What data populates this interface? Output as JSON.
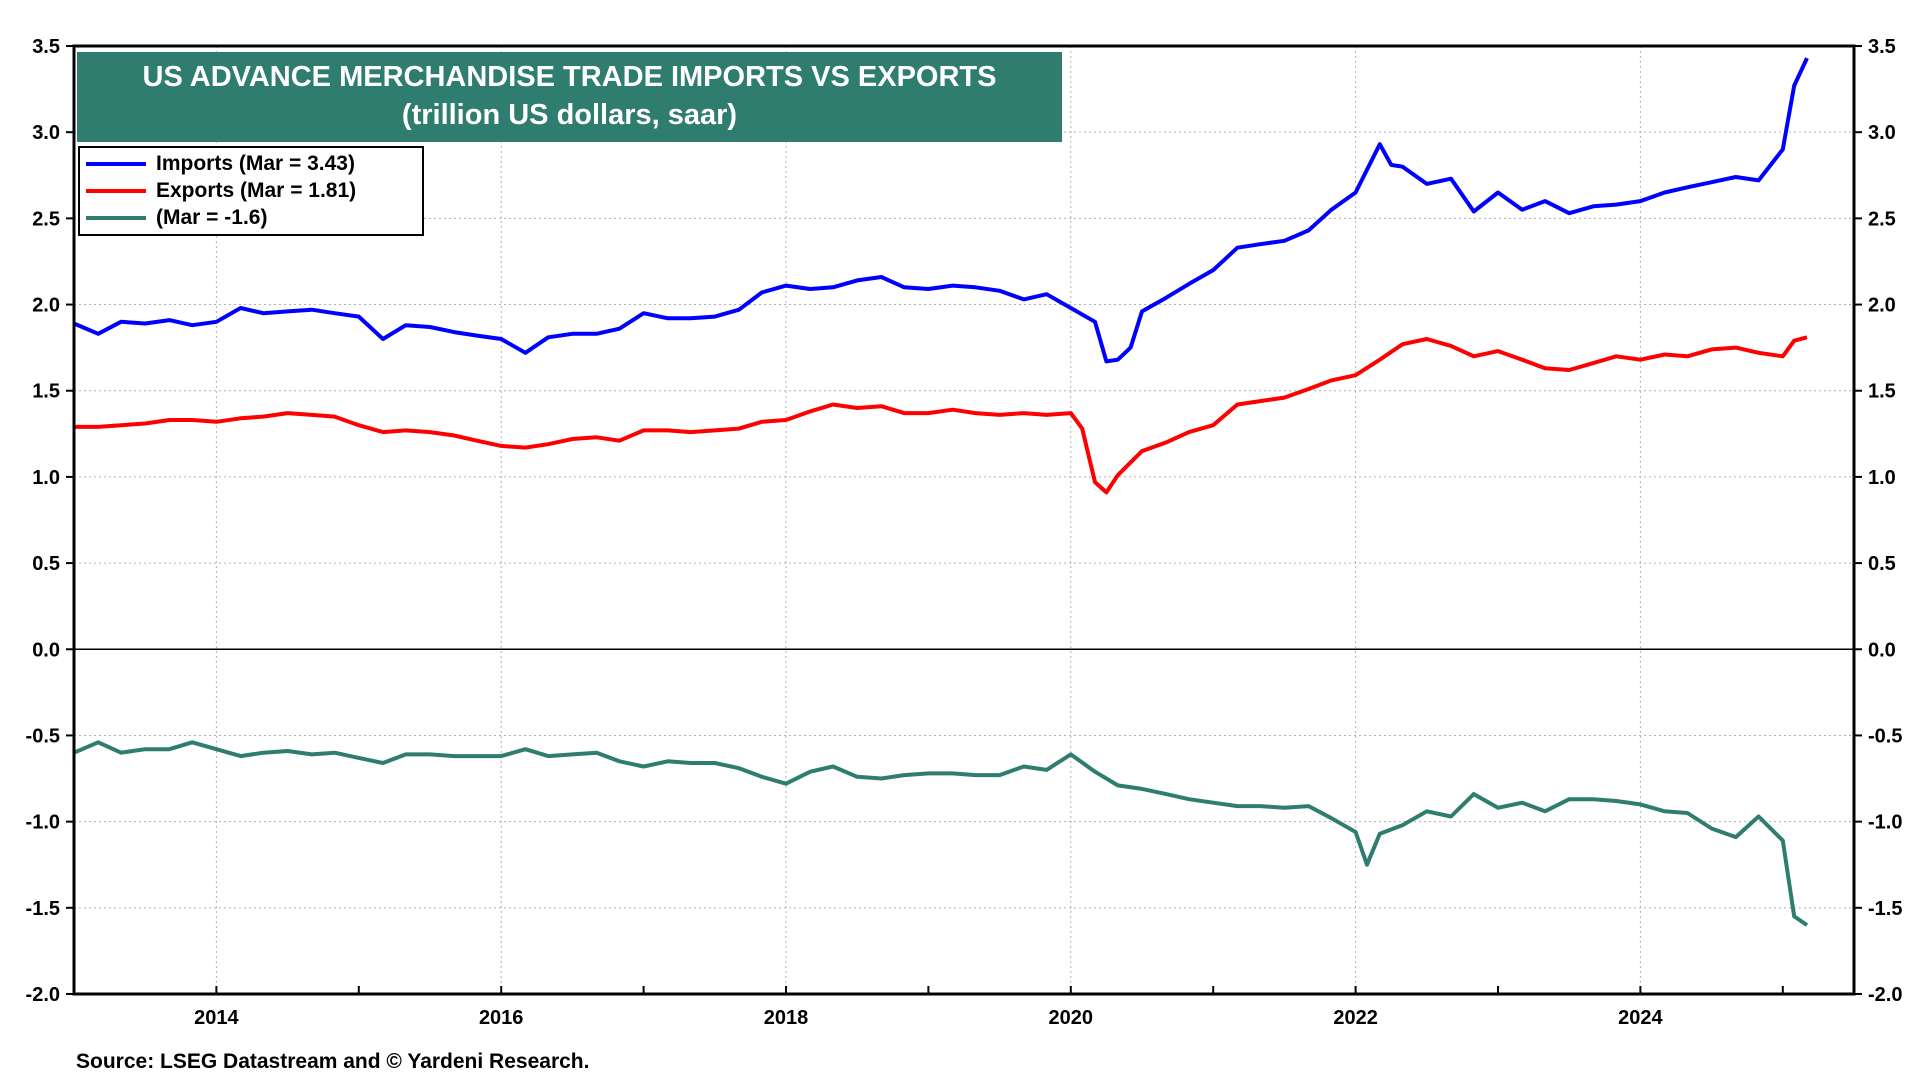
{
  "chart_data": {
    "type": "line",
    "title": "US ADVANCE MERCHANDISE TRADE IMPORTS VS EXPORTS",
    "subtitle": "(trillion US dollars, saar)",
    "ylim": [
      -2.0,
      3.5
    ],
    "y_ticks": [
      "3.5",
      "3.0",
      "2.5",
      "2.0",
      "1.5",
      "1.0",
      "0.5",
      "0.0",
      "-0.5",
      "-1.0",
      "-1.5",
      "-2.0"
    ],
    "x_ticks": [
      "2014",
      "2016",
      "2018",
      "2020",
      "2022",
      "2024"
    ],
    "x_range": [
      2013.0,
      2025.5
    ],
    "grid": true,
    "legend_position": "top-left",
    "series": [
      {
        "name": "Imports (Mar = 3.43)",
        "color": "#0000ff",
        "x": [
          2013.0,
          2013.17,
          2013.33,
          2013.5,
          2013.67,
          2013.83,
          2014.0,
          2014.17,
          2014.33,
          2014.5,
          2014.67,
          2014.83,
          2015.0,
          2015.17,
          2015.33,
          2015.5,
          2015.67,
          2015.83,
          2016.0,
          2016.17,
          2016.33,
          2016.5,
          2016.67,
          2016.83,
          2017.0,
          2017.17,
          2017.33,
          2017.5,
          2017.67,
          2017.83,
          2018.0,
          2018.17,
          2018.33,
          2018.5,
          2018.67,
          2018.83,
          2019.0,
          2019.17,
          2019.33,
          2019.5,
          2019.67,
          2019.83,
          2020.0,
          2020.17,
          2020.25,
          2020.33,
          2020.42,
          2020.5,
          2020.67,
          2020.83,
          2021.0,
          2021.17,
          2021.33,
          2021.5,
          2021.67,
          2021.83,
          2022.0,
          2022.17,
          2022.25,
          2022.33,
          2022.5,
          2022.67,
          2022.83,
          2023.0,
          2023.17,
          2023.33,
          2023.5,
          2023.67,
          2023.83,
          2024.0,
          2024.17,
          2024.33,
          2024.5,
          2024.67,
          2024.83,
          2025.0,
          2025.08,
          2025.17
        ],
        "values": [
          1.89,
          1.83,
          1.9,
          1.89,
          1.91,
          1.88,
          1.9,
          1.98,
          1.95,
          1.96,
          1.97,
          1.95,
          1.93,
          1.8,
          1.88,
          1.87,
          1.84,
          1.82,
          1.8,
          1.72,
          1.81,
          1.83,
          1.83,
          1.86,
          1.95,
          1.92,
          1.92,
          1.93,
          1.97,
          2.07,
          2.11,
          2.09,
          2.1,
          2.14,
          2.16,
          2.1,
          2.09,
          2.11,
          2.1,
          2.08,
          2.03,
          2.06,
          1.98,
          1.9,
          1.67,
          1.68,
          1.75,
          1.96,
          2.04,
          2.12,
          2.2,
          2.33,
          2.35,
          2.37,
          2.43,
          2.55,
          2.65,
          2.93,
          2.81,
          2.8,
          2.7,
          2.73,
          2.54,
          2.65,
          2.55,
          2.6,
          2.53,
          2.57,
          2.58,
          2.6,
          2.65,
          2.68,
          2.71,
          2.74,
          2.72,
          2.9,
          3.27,
          3.43
        ]
      },
      {
        "name": "Exports (Mar = 1.81)",
        "color": "#ff0000",
        "x": [
          2013.0,
          2013.17,
          2013.33,
          2013.5,
          2013.67,
          2013.83,
          2014.0,
          2014.17,
          2014.33,
          2014.5,
          2014.67,
          2014.83,
          2015.0,
          2015.17,
          2015.33,
          2015.5,
          2015.67,
          2015.83,
          2016.0,
          2016.17,
          2016.33,
          2016.5,
          2016.67,
          2016.83,
          2017.0,
          2017.17,
          2017.33,
          2017.5,
          2017.67,
          2017.83,
          2018.0,
          2018.17,
          2018.33,
          2018.5,
          2018.67,
          2018.83,
          2019.0,
          2019.17,
          2019.33,
          2019.5,
          2019.67,
          2019.83,
          2020.0,
          2020.08,
          2020.17,
          2020.25,
          2020.33,
          2020.5,
          2020.67,
          2020.83,
          2021.0,
          2021.17,
          2021.33,
          2021.5,
          2021.67,
          2021.83,
          2022.0,
          2022.17,
          2022.33,
          2022.5,
          2022.67,
          2022.83,
          2023.0,
          2023.17,
          2023.33,
          2023.5,
          2023.67,
          2023.83,
          2024.0,
          2024.17,
          2024.33,
          2024.5,
          2024.67,
          2024.83,
          2025.0,
          2025.08,
          2025.17
        ],
        "values": [
          1.29,
          1.29,
          1.3,
          1.31,
          1.33,
          1.33,
          1.32,
          1.34,
          1.35,
          1.37,
          1.36,
          1.35,
          1.3,
          1.26,
          1.27,
          1.26,
          1.24,
          1.21,
          1.18,
          1.17,
          1.19,
          1.22,
          1.23,
          1.21,
          1.27,
          1.27,
          1.26,
          1.27,
          1.28,
          1.32,
          1.33,
          1.38,
          1.42,
          1.4,
          1.41,
          1.37,
          1.37,
          1.39,
          1.37,
          1.36,
          1.37,
          1.36,
          1.37,
          1.28,
          0.97,
          0.91,
          1.01,
          1.15,
          1.2,
          1.26,
          1.3,
          1.42,
          1.44,
          1.46,
          1.51,
          1.56,
          1.59,
          1.68,
          1.77,
          1.8,
          1.76,
          1.7,
          1.73,
          1.68,
          1.63,
          1.62,
          1.66,
          1.7,
          1.68,
          1.71,
          1.7,
          1.74,
          1.75,
          1.72,
          1.7,
          1.79,
          1.81
        ]
      },
      {
        "name": "(Mar = -1.6)",
        "color": "#2e7d6e",
        "x": [
          2013.0,
          2013.17,
          2013.33,
          2013.5,
          2013.67,
          2013.83,
          2014.0,
          2014.17,
          2014.33,
          2014.5,
          2014.67,
          2014.83,
          2015.0,
          2015.17,
          2015.33,
          2015.5,
          2015.67,
          2015.83,
          2016.0,
          2016.17,
          2016.33,
          2016.5,
          2016.67,
          2016.83,
          2017.0,
          2017.17,
          2017.33,
          2017.5,
          2017.67,
          2017.83,
          2018.0,
          2018.17,
          2018.33,
          2018.5,
          2018.67,
          2018.83,
          2019.0,
          2019.17,
          2019.33,
          2019.5,
          2019.67,
          2019.83,
          2020.0,
          2020.17,
          2020.33,
          2020.5,
          2020.67,
          2020.83,
          2021.0,
          2021.17,
          2021.33,
          2021.5,
          2021.67,
          2021.83,
          2022.0,
          2022.08,
          2022.17,
          2022.33,
          2022.5,
          2022.67,
          2022.83,
          2023.0,
          2023.17,
          2023.33,
          2023.5,
          2023.67,
          2023.83,
          2024.0,
          2024.17,
          2024.33,
          2024.5,
          2024.67,
          2024.83,
          2025.0,
          2025.08,
          2025.17
        ],
        "values": [
          -0.6,
          -0.54,
          -0.6,
          -0.58,
          -0.58,
          -0.54,
          -0.58,
          -0.62,
          -0.6,
          -0.59,
          -0.61,
          -0.6,
          -0.63,
          -0.66,
          -0.61,
          -0.61,
          -0.62,
          -0.62,
          -0.62,
          -0.58,
          -0.62,
          -0.61,
          -0.6,
          -0.65,
          -0.68,
          -0.65,
          -0.66,
          -0.66,
          -0.69,
          -0.74,
          -0.78,
          -0.71,
          -0.68,
          -0.74,
          -0.75,
          -0.73,
          -0.72,
          -0.72,
          -0.73,
          -0.73,
          -0.68,
          -0.7,
          -0.61,
          -0.71,
          -0.79,
          -0.81,
          -0.84,
          -0.87,
          -0.89,
          -0.91,
          -0.91,
          -0.92,
          -0.91,
          -0.98,
          -1.06,
          -1.25,
          -1.07,
          -1.02,
          -0.94,
          -0.97,
          -0.84,
          -0.92,
          -0.89,
          -0.94,
          -0.87,
          -0.87,
          -0.88,
          -0.9,
          -0.94,
          -0.95,
          -1.04,
          -1.09,
          -0.97,
          -1.11,
          -1.55,
          -1.6
        ]
      }
    ]
  },
  "source": "Source: LSEG Datastream and © Yardeni Research."
}
